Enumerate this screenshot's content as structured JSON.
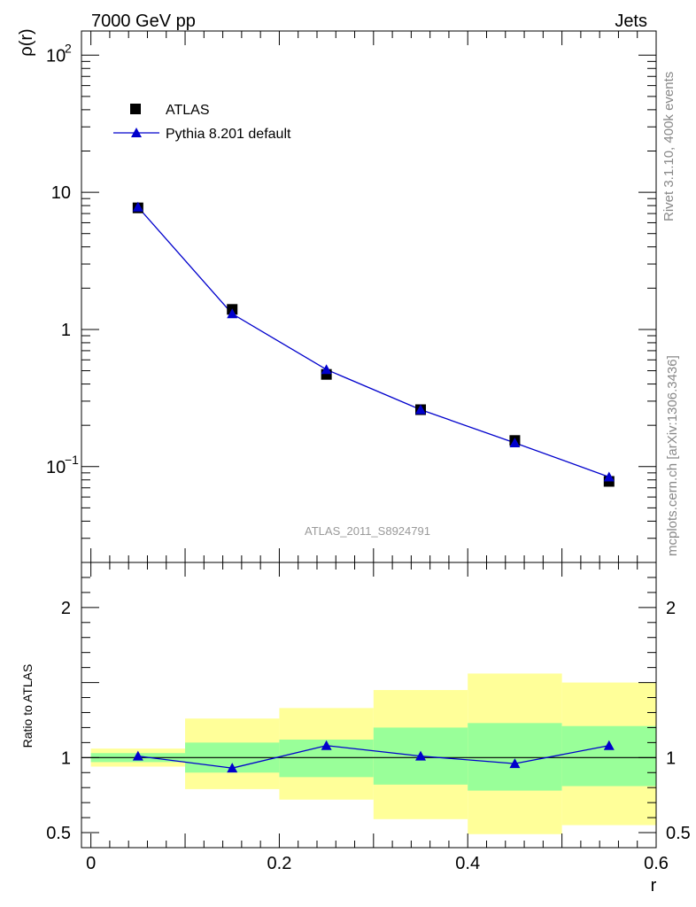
{
  "header": {
    "left_title": "7000 GeV pp",
    "right_title": "Jets",
    "watermark": "ATLAS_2011_S8924791",
    "side_top": "Rivet 3.1.10,  400k events",
    "side_bottom": "mcplots.cern.ch [arXiv:1306.3436]"
  },
  "chart_data": [
    {
      "type": "scatter",
      "ylabel": "ρ(r)",
      "yscale": "log",
      "xlim": [
        -0.01,
        0.6
      ],
      "ylim": [
        0.02,
        150
      ],
      "ytick_labels": [
        "10",
        "1"
      ],
      "ytick_exp_labels": [
        {
          "value": 100,
          "base": "10",
          "exp": "2"
        },
        {
          "value": 0.1,
          "base": "10",
          "exp": "−1"
        }
      ],
      "legend_position": "top-left",
      "series": [
        {
          "name": "ATLAS",
          "marker": "square",
          "color": "#000000",
          "x": [
            0.05,
            0.15,
            0.25,
            0.35,
            0.45,
            0.55
          ],
          "y": [
            7.7,
            1.4,
            0.47,
            0.26,
            0.155,
            0.078
          ]
        },
        {
          "name": "Pythia 8.201 default",
          "marker": "triangle",
          "color": "#0000cc",
          "line": true,
          "x": [
            0.05,
            0.15,
            0.25,
            0.35,
            0.45,
            0.55
          ],
          "y": [
            7.8,
            1.3,
            0.51,
            0.26,
            0.149,
            0.084
          ]
        }
      ]
    },
    {
      "type": "line",
      "ylabel": "Ratio to ATLAS",
      "xlabel": "r",
      "xlim": [
        -0.01,
        0.6
      ],
      "ylim": [
        0.4,
        2.3
      ],
      "xtick_labels": [
        "0",
        "0.2",
        "0.4",
        "0.6"
      ],
      "ytick_labels": [
        "2",
        "1",
        "0.5"
      ],
      "reference": 1,
      "bands": [
        {
          "x0": 0.0,
          "x1": 0.1,
          "inner": [
            0.97,
            1.03
          ],
          "outer": [
            0.94,
            1.06
          ]
        },
        {
          "x0": 0.1,
          "x1": 0.2,
          "inner": [
            0.9,
            1.1
          ],
          "outer": [
            0.79,
            1.26
          ]
        },
        {
          "x0": 0.2,
          "x1": 0.3,
          "inner": [
            0.87,
            1.12
          ],
          "outer": [
            0.72,
            1.33
          ]
        },
        {
          "x0": 0.3,
          "x1": 0.4,
          "inner": [
            0.82,
            1.2
          ],
          "outer": [
            0.59,
            1.45
          ]
        },
        {
          "x0": 0.4,
          "x1": 0.5,
          "inner": [
            0.78,
            1.23
          ],
          "outer": [
            0.49,
            1.56
          ]
        },
        {
          "x0": 0.5,
          "x1": 0.6,
          "inner": [
            0.81,
            1.21
          ],
          "outer": [
            0.55,
            1.5
          ]
        }
      ],
      "series": [
        {
          "name": "Pythia 8.201 default",
          "color": "#0000cc",
          "x": [
            0.05,
            0.15,
            0.25,
            0.35,
            0.45,
            0.55
          ],
          "y": [
            1.01,
            0.93,
            1.08,
            1.01,
            0.96,
            1.08
          ]
        }
      ],
      "colors": {
        "inner_band": "#99ff99",
        "outer_band": "#ffff99"
      }
    }
  ]
}
